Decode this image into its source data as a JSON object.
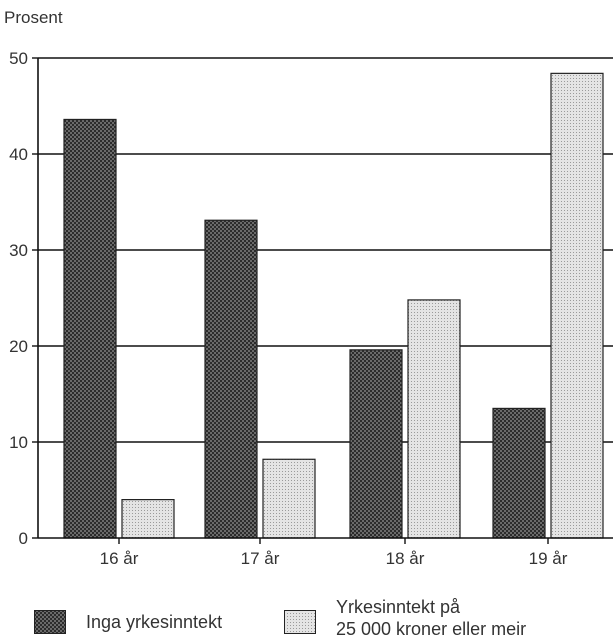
{
  "chart_data": {
    "type": "bar",
    "ylabel": "Prosent",
    "ylim": [
      0,
      50
    ],
    "yticks": [
      0,
      10,
      20,
      30,
      40,
      50
    ],
    "categories": [
      "16 år",
      "17 år",
      "18 år",
      "19 år"
    ],
    "series": [
      {
        "name": "Inga yrkesinntekt",
        "values": [
          43.6,
          33.1,
          19.6,
          13.5
        ],
        "color": "#555555",
        "pattern": "dense-dots"
      },
      {
        "name_lines": [
          "Yrkesinntekt på",
          "25 000 kroner eller meir"
        ],
        "values": [
          4.0,
          8.2,
          24.8,
          48.4
        ],
        "color": "#d9d9d9",
        "pattern": "light-dots"
      }
    ],
    "grid": true,
    "legend_position": "bottom"
  }
}
